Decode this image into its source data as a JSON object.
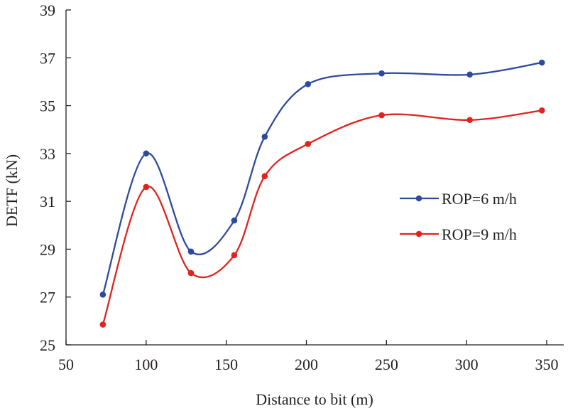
{
  "chart_data": {
    "type": "line",
    "title": "",
    "xlabel": "Distance to bit (m)",
    "ylabel": "DETF (kN)",
    "xlim": [
      50,
      350
    ],
    "ylim": [
      25,
      39
    ],
    "xticks": [
      50,
      100,
      150,
      200,
      250,
      300,
      350
    ],
    "yticks": [
      25,
      27,
      29,
      31,
      33,
      35,
      37,
      39
    ],
    "grid": false,
    "legend_position": "right",
    "series": [
      {
        "name": "ROP=6 m/h",
        "color": "#2e4a9e",
        "x": [
          73,
          100,
          128,
          155,
          174,
          201,
          247,
          302,
          347
        ],
        "y": [
          27.1,
          33.0,
          28.9,
          30.2,
          33.7,
          35.9,
          36.35,
          36.3,
          36.8
        ]
      },
      {
        "name": "ROP=9 m/h",
        "color": "#e0231d",
        "x": [
          73,
          100,
          128,
          155,
          174,
          201,
          247,
          302,
          347
        ],
        "y": [
          25.85,
          31.6,
          28.0,
          28.75,
          32.05,
          33.4,
          34.6,
          34.4,
          34.8
        ]
      }
    ]
  }
}
